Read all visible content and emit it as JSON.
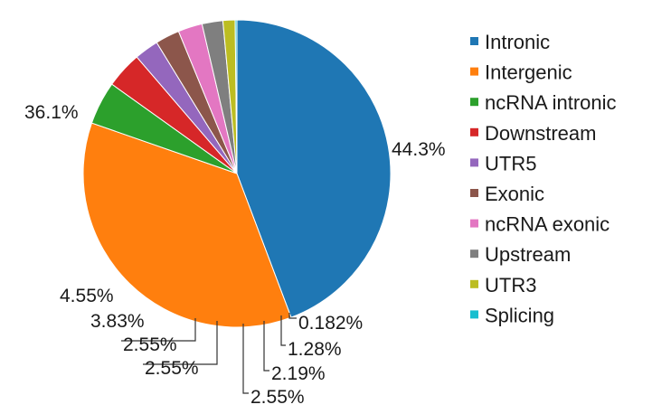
{
  "chart_data": {
    "type": "pie",
    "slices": [
      {
        "label": "Intronic",
        "value": 44.3,
        "display": "44.3%",
        "color": "#1f77b4"
      },
      {
        "label": "Intergenic",
        "value": 36.1,
        "display": "36.1%",
        "color": "#ff7f0e"
      },
      {
        "label": "ncRNA intronic",
        "value": 4.55,
        "display": "4.55%",
        "color": "#2ca02c"
      },
      {
        "label": "Downstream",
        "value": 3.83,
        "display": "3.83%",
        "color": "#d62728"
      },
      {
        "label": "UTR5",
        "value": 2.55,
        "display": "2.55%",
        "color": "#9467bd"
      },
      {
        "label": "Exonic",
        "value": 2.55,
        "display": "2.55%",
        "color": "#8c564b"
      },
      {
        "label": "ncRNA exonic",
        "value": 2.55,
        "display": "2.55%",
        "color": "#e377c2"
      },
      {
        "label": "Upstream",
        "value": 2.19,
        "display": "2.19%",
        "color": "#7f7f7f"
      },
      {
        "label": "UTR3",
        "value": 1.28,
        "display": "1.28%",
        "color": "#bcbd22"
      },
      {
        "label": "Splicing",
        "value": 0.182,
        "display": "0.182%",
        "color": "#17becf"
      }
    ],
    "legend_position": "right",
    "start_angle": "top, counter-clockwise"
  }
}
